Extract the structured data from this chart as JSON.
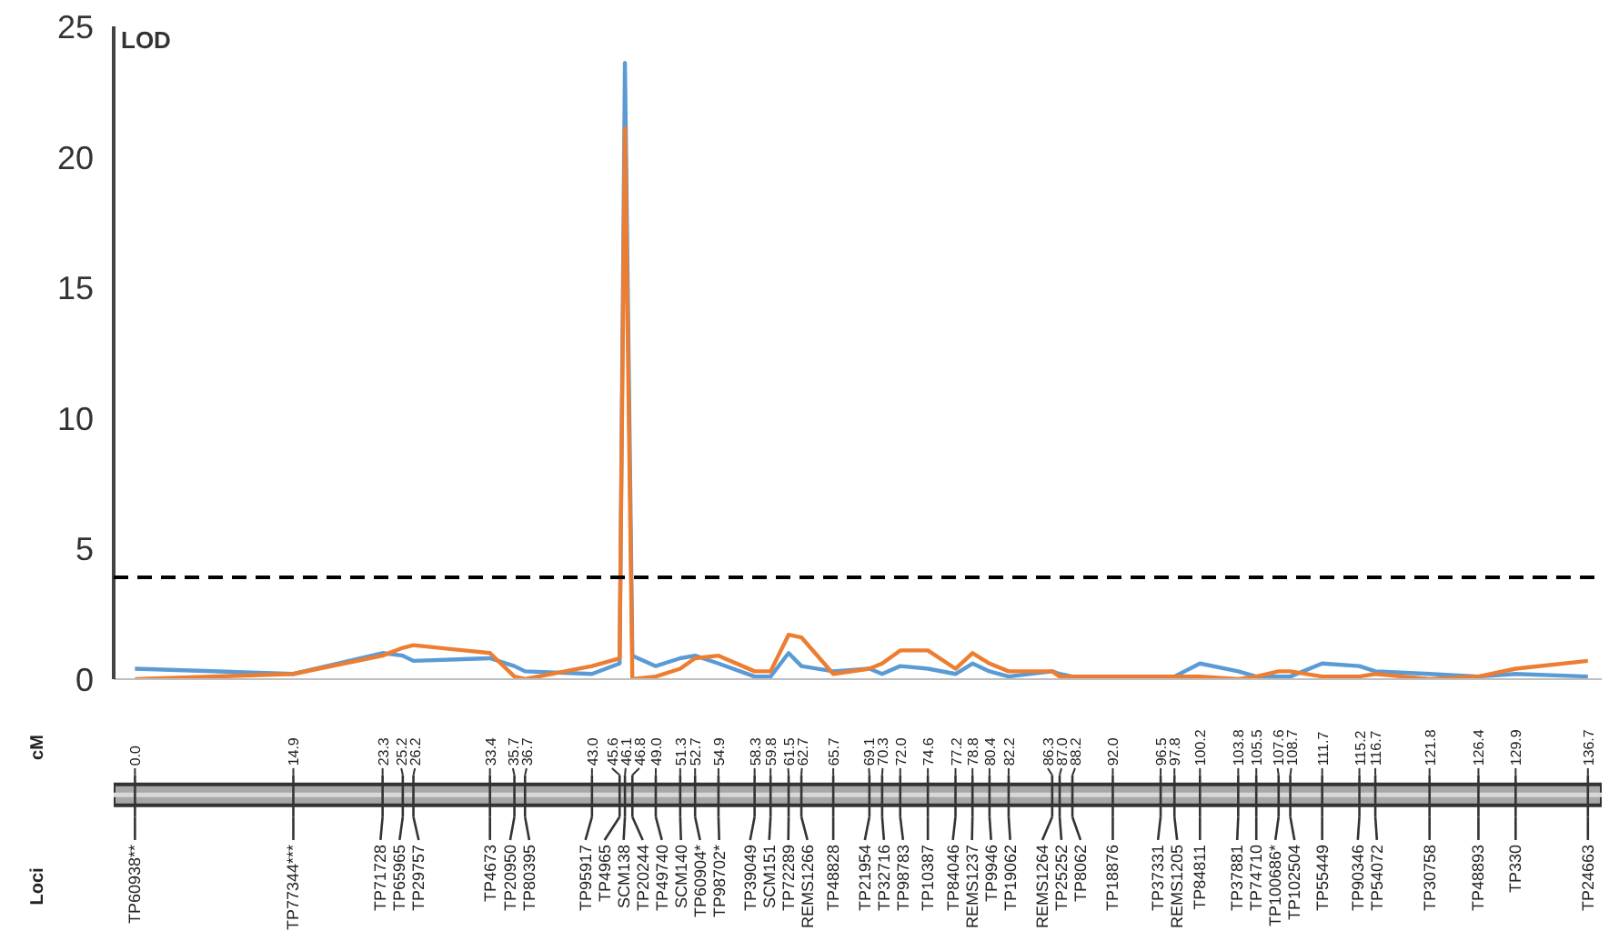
{
  "chart_data": {
    "type": "line",
    "ylabel": "LOD",
    "xlim": [
      -2,
      138
    ],
    "ylim": [
      0,
      25
    ],
    "yticks": [
      0,
      5,
      10,
      15,
      20,
      25
    ],
    "x": [
      0.0,
      14.9,
      23.3,
      25.2,
      26.2,
      33.4,
      35.7,
      36.7,
      43.0,
      45.6,
      46.1,
      46.8,
      49.0,
      51.3,
      52.7,
      54.9,
      58.3,
      59.8,
      61.5,
      62.7,
      65.7,
      69.1,
      70.3,
      72.0,
      74.6,
      77.2,
      78.8,
      80.4,
      82.2,
      86.3,
      87.0,
      88.2,
      92.0,
      96.5,
      97.8,
      100.2,
      103.8,
      105.5,
      107.6,
      108.7,
      111.7,
      115.2,
      116.7,
      121.8,
      126.4,
      129.9,
      136.7
    ],
    "xticks": [
      {
        "value": 0.0,
        "label": "0.0"
      },
      {
        "value": 14.9,
        "label": "14.9"
      },
      {
        "value": 23.3,
        "label": "23.3"
      },
      {
        "value": 25.2,
        "label": "25.2"
      },
      {
        "value": 26.2,
        "label": "26.2"
      },
      {
        "value": 33.4,
        "label": "33.4"
      },
      {
        "value": 35.7,
        "label": "35.7"
      },
      {
        "value": 36.7,
        "label": "36.7"
      },
      {
        "value": 43.0,
        "label": "43.0"
      },
      {
        "value": 45.6,
        "label": "45.6"
      },
      {
        "value": 46.1,
        "label": "46.1"
      },
      {
        "value": 46.8,
        "label": "46.8"
      },
      {
        "value": 49.0,
        "label": "49.0"
      },
      {
        "value": 51.3,
        "label": "51.3"
      },
      {
        "value": 52.7,
        "label": "52.7"
      },
      {
        "value": 54.9,
        "label": "54.9"
      },
      {
        "value": 58.3,
        "label": "58.3"
      },
      {
        "value": 59.8,
        "label": "59.8"
      },
      {
        "value": 61.5,
        "label": "61.5"
      },
      {
        "value": 62.7,
        "label": "62.7"
      },
      {
        "value": 65.7,
        "label": "65.7"
      },
      {
        "value": 69.1,
        "label": "69.1"
      },
      {
        "value": 70.3,
        "label": "70.3"
      },
      {
        "value": 72.0,
        "label": "72.0"
      },
      {
        "value": 74.6,
        "label": "74.6"
      },
      {
        "value": 77.2,
        "label": "77.2"
      },
      {
        "value": 78.8,
        "label": "78.8"
      },
      {
        "value": 80.4,
        "label": "80.4"
      },
      {
        "value": 82.2,
        "label": "82.2"
      },
      {
        "value": 86.3,
        "label": "86.3"
      },
      {
        "value": 87.0,
        "label": "87.0"
      },
      {
        "value": 88.2,
        "label": "88.2"
      },
      {
        "value": 92.0,
        "label": "92.0"
      },
      {
        "value": 96.5,
        "label": "96.5"
      },
      {
        "value": 97.8,
        "label": "97.8"
      },
      {
        "value": 100.2,
        "label": "100.2"
      },
      {
        "value": 103.8,
        "label": "103.8"
      },
      {
        "value": 105.5,
        "label": "105.5"
      },
      {
        "value": 107.6,
        "label": "107.6"
      },
      {
        "value": 108.7,
        "label": "108.7"
      },
      {
        "value": 111.7,
        "label": "111.7"
      },
      {
        "value": 115.2,
        "label": "115.2"
      },
      {
        "value": 116.7,
        "label": "116.7"
      },
      {
        "value": 121.8,
        "label": "121.8"
      },
      {
        "value": 126.4,
        "label": "126.4"
      },
      {
        "value": 129.9,
        "label": "129.9"
      },
      {
        "value": 136.7,
        "label": "136.7"
      }
    ],
    "series": [
      {
        "color": "#5b9bd5",
        "values": [
          0.4,
          0.2,
          1.0,
          0.9,
          0.7,
          0.8,
          0.5,
          0.3,
          0.2,
          0.6,
          23.6,
          0.9,
          0.5,
          0.8,
          0.9,
          0.6,
          0.1,
          0.1,
          1.0,
          0.5,
          0.3,
          0.4,
          0.2,
          0.5,
          0.4,
          0.2,
          0.6,
          0.3,
          0.1,
          0.3,
          0.2,
          0.1,
          0.1,
          0.1,
          0.1,
          0.6,
          0.3,
          0.1,
          0.1,
          0.1,
          0.6,
          0.5,
          0.3,
          0.2,
          0.1,
          0.2,
          0.1
        ]
      },
      {
        "color": "#ed7d31",
        "values": [
          0.0,
          0.2,
          0.9,
          1.2,
          1.3,
          1.0,
          0.1,
          0.0,
          0.5,
          0.8,
          21.1,
          0.0,
          0.1,
          0.4,
          0.8,
          0.9,
          0.3,
          0.3,
          1.7,
          1.6,
          0.2,
          0.4,
          0.6,
          1.1,
          1.1,
          0.4,
          1.0,
          0.6,
          0.3,
          0.3,
          0.1,
          0.1,
          0.1,
          0.1,
          0.1,
          0.1,
          0.0,
          0.1,
          0.3,
          0.3,
          0.1,
          0.1,
          0.2,
          0.0,
          0.1,
          0.4,
          0.7
        ]
      }
    ],
    "ref_lines": [
      {
        "axis": "y",
        "value": 3.9,
        "color": "#000000",
        "line_style": "dashed"
      }
    ],
    "annotations": [
      "cM",
      "Loci",
      {
        "text": "TP60938**",
        "x": 0.0
      },
      {
        "text": "TP77344***",
        "x": 14.9
      },
      {
        "text": "TP71728",
        "x": 23.3
      },
      {
        "text": "TP65965",
        "x": 25.2
      },
      {
        "text": "TP29757",
        "x": 26.2
      },
      {
        "text": "TP4673",
        "x": 33.4
      },
      {
        "text": "TP20950",
        "x": 35.7
      },
      {
        "text": "TP80395",
        "x": 36.7
      },
      {
        "text": "TP95917",
        "x": 43.0
      },
      {
        "text": "TP4965",
        "x": 45.6
      },
      {
        "text": "SCM138",
        "x": 46.1
      },
      {
        "text": "TP20244",
        "x": 46.8
      },
      {
        "text": "TP49740",
        "x": 49.0
      },
      {
        "text": "SCM140",
        "x": 51.3
      },
      {
        "text": "TP60904*",
        "x": 52.7
      },
      {
        "text": "TP98702*",
        "x": 54.9
      },
      {
        "text": "TP39049",
        "x": 58.3
      },
      {
        "text": "SCM151",
        "x": 59.8
      },
      {
        "text": "TP72289",
        "x": 61.5
      },
      {
        "text": "REMS1266",
        "x": 62.7
      },
      {
        "text": "TP48828",
        "x": 65.7
      },
      {
        "text": "TP21954",
        "x": 69.1
      },
      {
        "text": "TP32716",
        "x": 70.3
      },
      {
        "text": "TP98783",
        "x": 72.0
      },
      {
        "text": "TP10387",
        "x": 74.6
      },
      {
        "text": "TP84046",
        "x": 77.2
      },
      {
        "text": "REMS1237",
        "x": 78.8
      },
      {
        "text": "TP9946",
        "x": 80.4
      },
      {
        "text": "TP19062",
        "x": 82.2
      },
      {
        "text": "REMS1264",
        "x": 86.3
      },
      {
        "text": "TP25252",
        "x": 87.0
      },
      {
        "text": "TP8062",
        "x": 88.2
      },
      {
        "text": "TP18876",
        "x": 92.0
      },
      {
        "text": "TP37331",
        "x": 96.5
      },
      {
        "text": "REMS1205",
        "x": 97.8
      },
      {
        "text": "TP84811",
        "x": 100.2
      },
      {
        "text": "TP37881",
        "x": 103.8
      },
      {
        "text": "TP74710",
        "x": 105.5
      },
      {
        "text": "TP100686*",
        "x": 107.6
      },
      {
        "text": "TP102504",
        "x": 108.7
      },
      {
        "text": "TP55449",
        "x": 111.7
      },
      {
        "text": "TP90346",
        "x": 115.2
      },
      {
        "text": "TP54072",
        "x": 116.7
      },
      {
        "text": "TP30758",
        "x": 121.8
      },
      {
        "text": "TP48893",
        "x": 126.4
      },
      {
        "text": "TP330",
        "x": 129.9
      },
      {
        "text": "TP24663",
        "x": 136.7
      }
    ]
  }
}
